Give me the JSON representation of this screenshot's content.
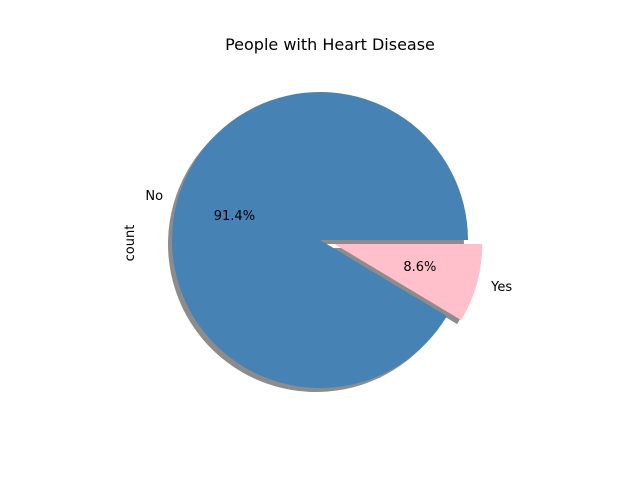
{
  "chart_data": {
    "type": "pie",
    "title": "People with Heart Disease",
    "ylabel": "count",
    "slices": [
      {
        "label": "No",
        "value": 91.4,
        "pct_label": "91.4%",
        "color": "#4682b4",
        "explode": 0
      },
      {
        "label": "Yes",
        "value": 8.6,
        "pct_label": "8.6%",
        "color": "#ffc0cb",
        "explode": 0.1
      }
    ],
    "start_angle_deg": 0,
    "direction": "counterclockwise",
    "shadow": true,
    "legend": "none"
  }
}
